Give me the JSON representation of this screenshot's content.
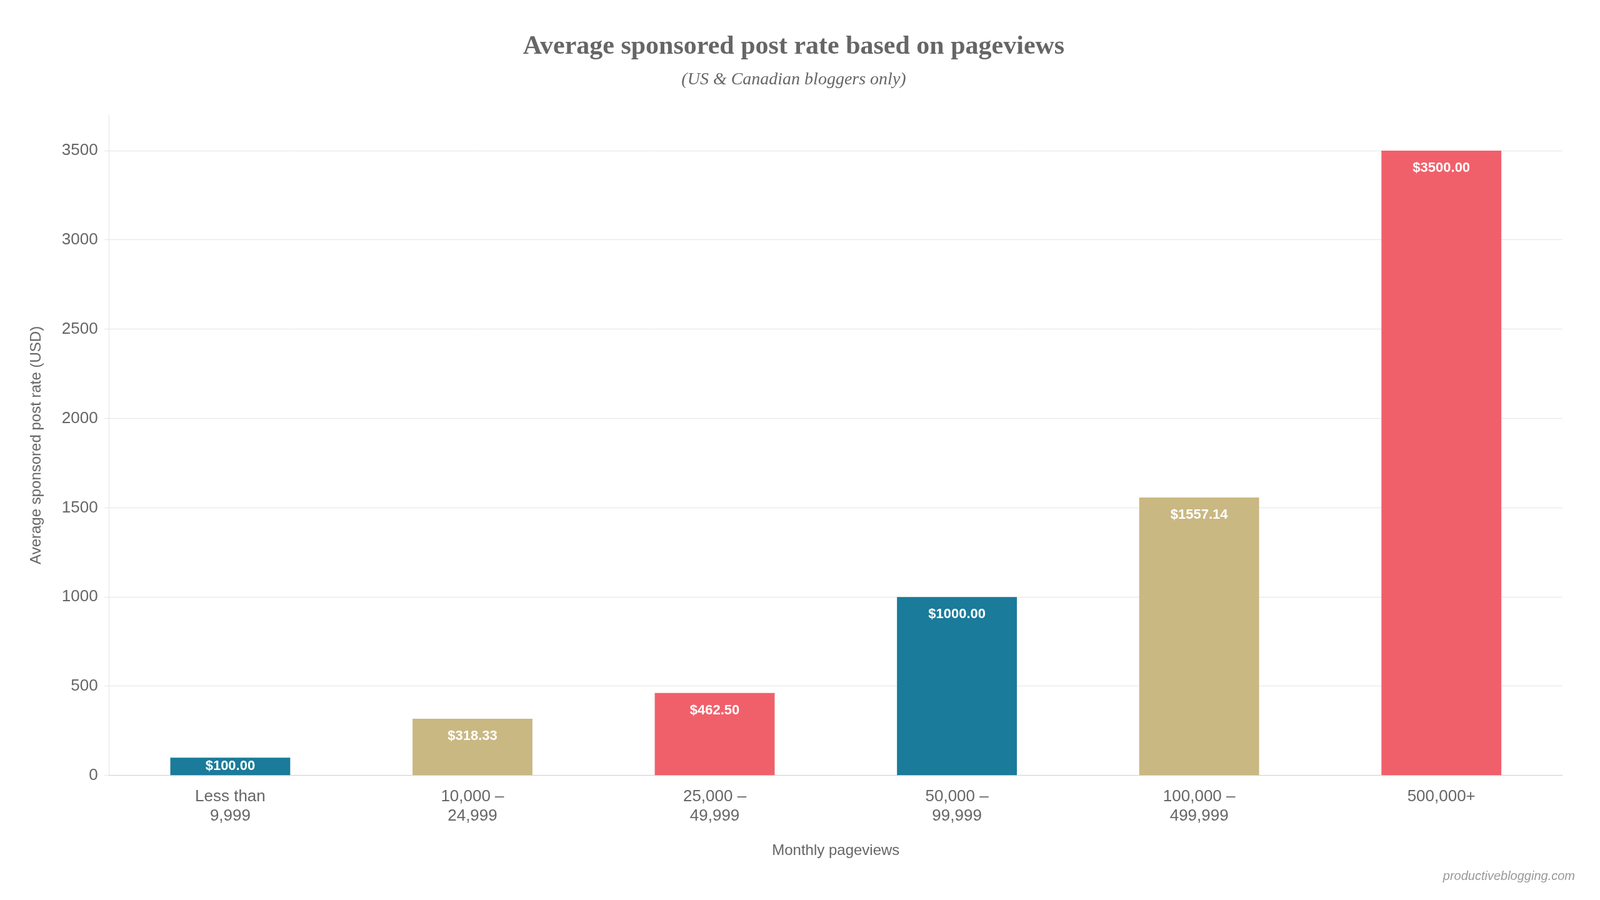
{
  "chart_data": {
    "type": "bar",
    "title": "Average sponsored post rate based on pageviews",
    "subtitle": "(US & Canadian bloggers only)",
    "xlabel": "Monthly pageviews",
    "ylabel": "Average sponsored post rate (USD)",
    "categories": [
      "Less than\n9,999",
      "10,000 –\n24,999",
      "25,000 –\n49,999",
      "50,000 –\n99,999",
      "100,000 –\n499,999",
      "500,000+"
    ],
    "values": [
      100.0,
      318.33,
      462.5,
      1000.0,
      1557.14,
      3500.0
    ],
    "value_labels": [
      "$100.00",
      "$318.33",
      "$462.50",
      "$1000.00",
      "$1557.14",
      "$3500.00"
    ],
    "data_labels": true,
    "colors": [
      "#1a7b9a",
      "#c9b882",
      "#f0606a",
      "#1a7b9a",
      "#c9b882",
      "#f0606a"
    ],
    "ylim": [
      0,
      3700
    ],
    "yticks": [
      0,
      500,
      1000,
      1500,
      2000,
      2500,
      3000,
      3500
    ],
    "grid": true,
    "annotations": [
      "productiveblogging.com"
    ]
  }
}
